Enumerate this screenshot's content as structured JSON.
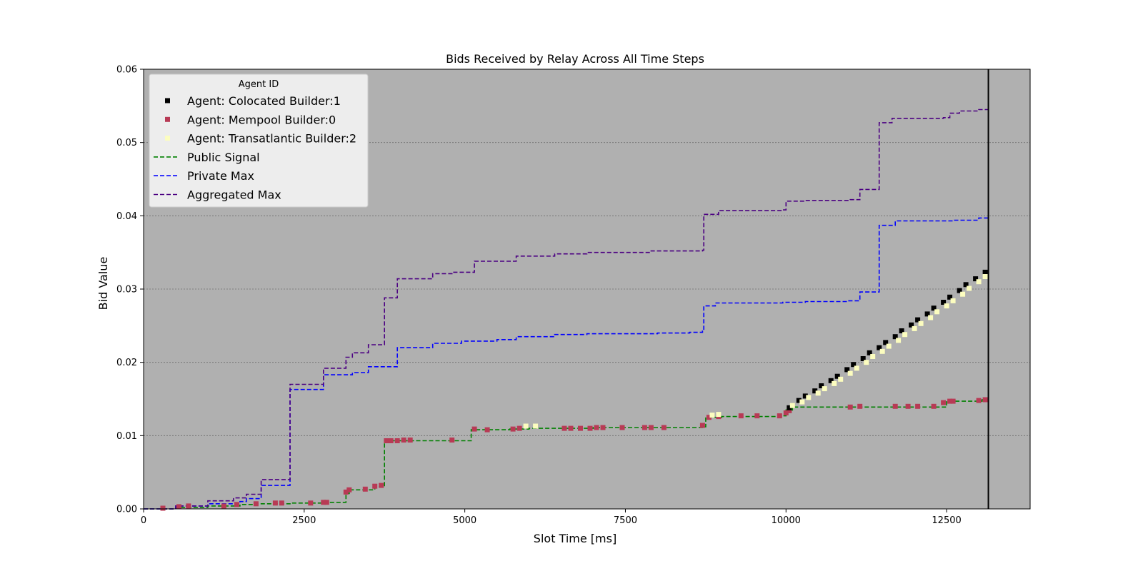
{
  "chart_data": {
    "type": "line",
    "title": "Bids Received by Relay Across All Time Steps",
    "xlabel": "Slot Time [ms]",
    "ylabel": "Bid Value",
    "xlim": [
      0,
      13800
    ],
    "ylim": [
      0,
      0.06
    ],
    "x_ticks": [
      0,
      2500,
      5000,
      7500,
      10000,
      12500
    ],
    "x_tick_labels": [
      "0",
      "2500",
      "5000",
      "7500",
      "10000",
      "12500"
    ],
    "y_ticks": [
      0,
      0.01,
      0.02,
      0.03,
      0.04,
      0.05,
      0.06
    ],
    "y_tick_labels": [
      "0.00",
      "0.01",
      "0.02",
      "0.03",
      "0.04",
      "0.05",
      "0.06"
    ],
    "grid": "horizontal dotted",
    "plot_background": "#b0b0b0",
    "legend": {
      "title": "Agent ID",
      "placement": "top-left",
      "entries": [
        {
          "label": "Agent: Colocated Builder:1",
          "kind": "marker",
          "color": "#000000"
        },
        {
          "label": "Agent: Mempool Builder:0",
          "kind": "marker",
          "color": "#b83a55"
        },
        {
          "label": "Agent: Transatlantic Builder:2",
          "kind": "marker",
          "color": "#fcfdbf"
        },
        {
          "label": "Public Signal",
          "kind": "dashed-line",
          "color": "#008000"
        },
        {
          "label": "Private Max",
          "kind": "dashed-line",
          "color": "#0000ff"
        },
        {
          "label": "Aggregated Max",
          "kind": "dashed-line",
          "color": "#4b0082"
        }
      ]
    },
    "vertical_line": {
      "x": 13150,
      "color": "#000000"
    },
    "series": [
      {
        "name": "Public Signal",
        "style": "dashed step",
        "color": "#008000",
        "points": [
          [
            0,
            0
          ],
          [
            500,
            0.0002
          ],
          [
            1000,
            0.0004
          ],
          [
            1500,
            0.0006
          ],
          [
            1750,
            0.0007
          ],
          [
            2300,
            0.0008
          ],
          [
            2800,
            0.0009
          ],
          [
            3150,
            0.0021
          ],
          [
            3200,
            0.0026
          ],
          [
            3600,
            0.003
          ],
          [
            3750,
            0.0093
          ],
          [
            4600,
            0.0093
          ],
          [
            5100,
            0.0108
          ],
          [
            5700,
            0.0109
          ],
          [
            6000,
            0.011
          ],
          [
            7000,
            0.0111
          ],
          [
            8000,
            0.0111
          ],
          [
            8700,
            0.0112
          ],
          [
            8750,
            0.0125
          ],
          [
            9000,
            0.0126
          ],
          [
            9950,
            0.0127
          ],
          [
            10000,
            0.0135
          ],
          [
            10100,
            0.0139
          ],
          [
            12400,
            0.0139
          ],
          [
            12500,
            0.0147
          ],
          [
            13050,
            0.0149
          ],
          [
            13150,
            0.0149
          ]
        ]
      },
      {
        "name": "Private Max",
        "style": "dashed step",
        "color": "#0000ff",
        "points": [
          [
            0,
            0
          ],
          [
            500,
            0.0004
          ],
          [
            1000,
            0.0007
          ],
          [
            1500,
            0.001
          ],
          [
            1600,
            0.0014
          ],
          [
            1830,
            0.0032
          ],
          [
            2280,
            0.0163
          ],
          [
            2800,
            0.0183
          ],
          [
            3250,
            0.0186
          ],
          [
            3500,
            0.0194
          ],
          [
            3950,
            0.022
          ],
          [
            4500,
            0.0226
          ],
          [
            4950,
            0.0229
          ],
          [
            5500,
            0.0231
          ],
          [
            5800,
            0.0235
          ],
          [
            6400,
            0.0238
          ],
          [
            6900,
            0.0239
          ],
          [
            8000,
            0.024
          ],
          [
            8500,
            0.0241
          ],
          [
            8700,
            0.0243
          ],
          [
            8720,
            0.0277
          ],
          [
            8900,
            0.0281
          ],
          [
            9950,
            0.0282
          ],
          [
            10300,
            0.0283
          ],
          [
            10950,
            0.0284
          ],
          [
            11150,
            0.0296
          ],
          [
            11450,
            0.0387
          ],
          [
            11700,
            0.0393
          ],
          [
            12600,
            0.0394
          ],
          [
            13000,
            0.0397
          ],
          [
            13150,
            0.0398
          ]
        ]
      },
      {
        "name": "Aggregated Max",
        "style": "dashed step",
        "color": "#4b0082",
        "points": [
          [
            0,
            0
          ],
          [
            500,
            0.0004
          ],
          [
            1000,
            0.0011
          ],
          [
            1400,
            0.0015
          ],
          [
            1600,
            0.002
          ],
          [
            1830,
            0.004
          ],
          [
            2280,
            0.017
          ],
          [
            2800,
            0.0192
          ],
          [
            3150,
            0.0207
          ],
          [
            3250,
            0.0213
          ],
          [
            3500,
            0.0224
          ],
          [
            3750,
            0.0288
          ],
          [
            3950,
            0.0314
          ],
          [
            4500,
            0.0321
          ],
          [
            4800,
            0.0323
          ],
          [
            5150,
            0.0338
          ],
          [
            5800,
            0.0345
          ],
          [
            6400,
            0.0348
          ],
          [
            6900,
            0.035
          ],
          [
            7900,
            0.0352
          ],
          [
            8700,
            0.0353
          ],
          [
            8720,
            0.0402
          ],
          [
            8950,
            0.0407
          ],
          [
            9950,
            0.0408
          ],
          [
            10000,
            0.042
          ],
          [
            10300,
            0.0421
          ],
          [
            11000,
            0.0422
          ],
          [
            11150,
            0.0436
          ],
          [
            11450,
            0.0527
          ],
          [
            11650,
            0.0533
          ],
          [
            12450,
            0.0534
          ],
          [
            12550,
            0.054
          ],
          [
            12700,
            0.0543
          ],
          [
            13000,
            0.0545
          ],
          [
            13150,
            0.0547
          ]
        ]
      },
      {
        "name": "Agent: Mempool Builder:0",
        "style": "square markers",
        "color": "#b83a55",
        "points": [
          [
            300,
            0.0001
          ],
          [
            550,
            0.0003
          ],
          [
            700,
            0.0004
          ],
          [
            1250,
            0.0004
          ],
          [
            1450,
            0.0006
          ],
          [
            1750,
            0.0007
          ],
          [
            2050,
            0.0008
          ],
          [
            2150,
            0.0008
          ],
          [
            2600,
            0.0008
          ],
          [
            2800,
            0.0009
          ],
          [
            2850,
            0.0009
          ],
          [
            3150,
            0.0023
          ],
          [
            3200,
            0.0026
          ],
          [
            3450,
            0.0027
          ],
          [
            3600,
            0.0031
          ],
          [
            3700,
            0.0032
          ],
          [
            3780,
            0.0093
          ],
          [
            3850,
            0.0093
          ],
          [
            3950,
            0.0093
          ],
          [
            4050,
            0.0094
          ],
          [
            4150,
            0.0094
          ],
          [
            4800,
            0.0094
          ],
          [
            5150,
            0.0109
          ],
          [
            5350,
            0.0108
          ],
          [
            5750,
            0.0109
          ],
          [
            5850,
            0.011
          ],
          [
            6550,
            0.011
          ],
          [
            6650,
            0.011
          ],
          [
            6800,
            0.011
          ],
          [
            6950,
            0.011
          ],
          [
            7050,
            0.0111
          ],
          [
            7150,
            0.0111
          ],
          [
            7450,
            0.0111
          ],
          [
            7800,
            0.0111
          ],
          [
            7900,
            0.0111
          ],
          [
            8100,
            0.0111
          ],
          [
            8700,
            0.0114
          ],
          [
            8800,
            0.0125
          ],
          [
            8950,
            0.0126
          ],
          [
            9300,
            0.0127
          ],
          [
            9550,
            0.0127
          ],
          [
            9900,
            0.0127
          ],
          [
            10000,
            0.0131
          ],
          [
            10050,
            0.0134
          ],
          [
            11000,
            0.0139
          ],
          [
            11150,
            0.014
          ],
          [
            11700,
            0.014
          ],
          [
            11900,
            0.014
          ],
          [
            12050,
            0.014
          ],
          [
            12300,
            0.014
          ],
          [
            12450,
            0.0145
          ],
          [
            12550,
            0.0147
          ],
          [
            12600,
            0.0147
          ],
          [
            13000,
            0.0148
          ],
          [
            13100,
            0.0149
          ]
        ]
      },
      {
        "name": "Agent: Colocated Builder:1",
        "style": "square markers",
        "color": "#000000",
        "points": [
          [
            10050,
            0.0138
          ],
          [
            10200,
            0.0148
          ],
          [
            10300,
            0.0154
          ],
          [
            10450,
            0.0161
          ],
          [
            10550,
            0.0168
          ],
          [
            10700,
            0.0175
          ],
          [
            10800,
            0.0181
          ],
          [
            10950,
            0.019
          ],
          [
            11050,
            0.0197
          ],
          [
            11200,
            0.0205
          ],
          [
            11300,
            0.0213
          ],
          [
            11450,
            0.022
          ],
          [
            11550,
            0.0227
          ],
          [
            11700,
            0.0235
          ],
          [
            11800,
            0.0243
          ],
          [
            11950,
            0.0251
          ],
          [
            12050,
            0.0258
          ],
          [
            12200,
            0.0266
          ],
          [
            12300,
            0.0274
          ],
          [
            12450,
            0.0282
          ],
          [
            12550,
            0.0289
          ],
          [
            12700,
            0.0298
          ],
          [
            12800,
            0.0306
          ],
          [
            12950,
            0.0314
          ],
          [
            13100,
            0.0323
          ]
        ]
      },
      {
        "name": "Agent: Transatlantic Builder:2",
        "style": "square markers",
        "color": "#fcfdbf",
        "points": [
          [
            5950,
            0.0113
          ],
          [
            6100,
            0.0113
          ],
          [
            8850,
            0.0128
          ],
          [
            8950,
            0.0129
          ],
          [
            10100,
            0.0141
          ],
          [
            10250,
            0.0146
          ],
          [
            10350,
            0.0152
          ],
          [
            10500,
            0.0158
          ],
          [
            10600,
            0.0164
          ],
          [
            10750,
            0.0171
          ],
          [
            10850,
            0.0177
          ],
          [
            11000,
            0.0185
          ],
          [
            11100,
            0.0192
          ],
          [
            11250,
            0.02
          ],
          [
            11350,
            0.0208
          ],
          [
            11500,
            0.0215
          ],
          [
            11600,
            0.0222
          ],
          [
            11750,
            0.023
          ],
          [
            11850,
            0.0238
          ],
          [
            12000,
            0.0246
          ],
          [
            12100,
            0.0253
          ],
          [
            12250,
            0.0261
          ],
          [
            12350,
            0.0269
          ],
          [
            12500,
            0.0277
          ],
          [
            12600,
            0.0284
          ],
          [
            12750,
            0.0293
          ],
          [
            12850,
            0.0301
          ],
          [
            13000,
            0.031
          ],
          [
            13100,
            0.0317
          ]
        ]
      }
    ]
  }
}
